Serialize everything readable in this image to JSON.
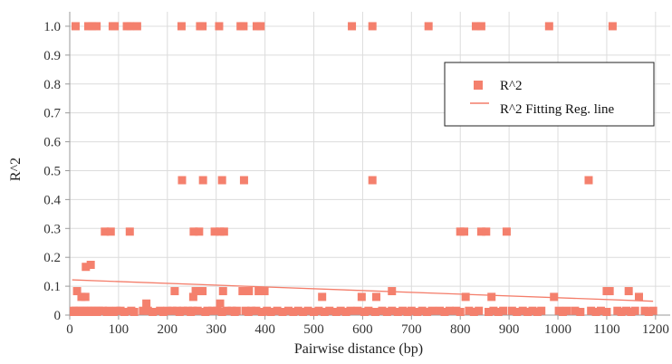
{
  "chart_data": {
    "type": "scatter",
    "xlabel": "Pairwise distance (bp)",
    "ylabel": "R^2",
    "xlim": [
      0,
      1230
    ],
    "ylim": [
      0,
      1.05
    ],
    "x_ticks": [
      0,
      100,
      200,
      300,
      400,
      500,
      600,
      700,
      800,
      900,
      1000,
      1100,
      1200
    ],
    "y_ticks": [
      0,
      0.1,
      0.2,
      0.3,
      0.4,
      0.5,
      0.6,
      0.7,
      0.8,
      0.9,
      1.0
    ],
    "y_tick_labels": [
      "0",
      "0.1",
      "0.2",
      "0.3",
      "0.4",
      "0.5",
      "0.6",
      "0.7",
      "0.8",
      "0.9",
      "1.0"
    ],
    "grid": true,
    "legend_position": "top-right",
    "colors": {
      "points": "#f4806d",
      "line": "#f47d6a",
      "grid": "#dcdcdc",
      "axis": "#9a9a9a"
    },
    "series": [
      {
        "name": "R^2",
        "kind": "scatter",
        "points": [
          [
            12,
            1.0
          ],
          [
            38,
            1.0
          ],
          [
            46,
            1.0
          ],
          [
            55,
            1.0
          ],
          [
            88,
            1.0
          ],
          [
            92,
            1.0
          ],
          [
            117,
            1.0
          ],
          [
            124,
            1.0
          ],
          [
            138,
            1.0
          ],
          [
            229,
            1.0
          ],
          [
            267,
            1.0
          ],
          [
            272,
            1.0
          ],
          [
            306,
            1.0
          ],
          [
            350,
            1.0
          ],
          [
            356,
            1.0
          ],
          [
            383,
            1.0
          ],
          [
            391,
            1.0
          ],
          [
            578,
            1.0
          ],
          [
            620,
            1.0
          ],
          [
            735,
            1.0
          ],
          [
            832,
            1.0
          ],
          [
            843,
            1.0
          ],
          [
            982,
            1.0
          ],
          [
            1112,
            1.0
          ],
          [
            230,
            0.467
          ],
          [
            273,
            0.467
          ],
          [
            312,
            0.467
          ],
          [
            357,
            0.467
          ],
          [
            620,
            0.467
          ],
          [
            1063,
            0.467
          ],
          [
            72,
            0.289
          ],
          [
            84,
            0.289
          ],
          [
            123,
            0.289
          ],
          [
            254,
            0.289
          ],
          [
            265,
            0.289
          ],
          [
            297,
            0.289
          ],
          [
            308,
            0.289
          ],
          [
            316,
            0.289
          ],
          [
            800,
            0.289
          ],
          [
            808,
            0.289
          ],
          [
            843,
            0.289
          ],
          [
            853,
            0.289
          ],
          [
            895,
            0.289
          ],
          [
            33,
            0.167
          ],
          [
            43,
            0.174
          ],
          [
            15,
            0.083
          ],
          [
            24,
            0.063
          ],
          [
            32,
            0.063
          ],
          [
            157,
            0.04
          ],
          [
            215,
            0.083
          ],
          [
            253,
            0.063
          ],
          [
            258,
            0.083
          ],
          [
            267,
            0.083
          ],
          [
            272,
            0.083
          ],
          [
            308,
            0.04
          ],
          [
            314,
            0.083
          ],
          [
            354,
            0.083
          ],
          [
            367,
            0.083
          ],
          [
            387,
            0.083
          ],
          [
            399,
            0.083
          ],
          [
            517,
            0.063
          ],
          [
            598,
            0.063
          ],
          [
            628,
            0.063
          ],
          [
            660,
            0.083
          ],
          [
            811,
            0.063
          ],
          [
            864,
            0.063
          ],
          [
            992,
            0.063
          ],
          [
            1100,
            0.083
          ],
          [
            1106,
            0.083
          ],
          [
            1145,
            0.083
          ],
          [
            1166,
            0.063
          ],
          [
            4,
            0.015
          ],
          [
            12,
            0.015
          ],
          [
            20,
            0.015
          ],
          [
            28,
            0.015
          ],
          [
            36,
            0.015
          ],
          [
            44,
            0.015
          ],
          [
            52,
            0.015
          ],
          [
            60,
            0.015
          ],
          [
            68,
            0.015
          ],
          [
            80,
            0.015
          ],
          [
            96,
            0.015
          ],
          [
            104,
            0.015
          ],
          [
            126,
            0.015
          ],
          [
            150,
            0.015
          ],
          [
            160,
            0.015
          ],
          [
            185,
            0.015
          ],
          [
            200,
            0.015
          ],
          [
            210,
            0.015
          ],
          [
            220,
            0.015
          ],
          [
            232,
            0.015
          ],
          [
            242,
            0.015
          ],
          [
            252,
            0.015
          ],
          [
            262,
            0.015
          ],
          [
            282,
            0.015
          ],
          [
            292,
            0.015
          ],
          [
            302,
            0.015
          ],
          [
            322,
            0.015
          ],
          [
            332,
            0.015
          ],
          [
            342,
            0.015
          ],
          [
            360,
            0.015
          ],
          [
            372,
            0.015
          ],
          [
            382,
            0.015
          ],
          [
            404,
            0.015
          ],
          [
            425,
            0.015
          ],
          [
            448,
            0.015
          ],
          [
            468,
            0.015
          ],
          [
            488,
            0.015
          ],
          [
            510,
            0.015
          ],
          [
            532,
            0.015
          ],
          [
            555,
            0.015
          ],
          [
            575,
            0.015
          ],
          [
            590,
            0.015
          ],
          [
            612,
            0.015
          ],
          [
            640,
            0.015
          ],
          [
            660,
            0.015
          ],
          [
            682,
            0.015
          ],
          [
            700,
            0.015
          ],
          [
            722,
            0.015
          ],
          [
            742,
            0.015
          ],
          [
            758,
            0.015
          ],
          [
            778,
            0.015
          ],
          [
            792,
            0.015
          ],
          [
            818,
            0.015
          ],
          [
            838,
            0.015
          ],
          [
            868,
            0.015
          ],
          [
            888,
            0.015
          ],
          [
            906,
            0.015
          ],
          [
            928,
            0.015
          ],
          [
            948,
            0.015
          ],
          [
            966,
            0.015
          ],
          [
            1002,
            0.015
          ],
          [
            1018,
            0.015
          ],
          [
            1035,
            0.015
          ],
          [
            1068,
            0.015
          ],
          [
            1088,
            0.015
          ],
          [
            1122,
            0.015
          ],
          [
            1140,
            0.015
          ],
          [
            1158,
            0.015
          ],
          [
            1178,
            0.015
          ],
          [
            1195,
            0.015
          ],
          [
            6,
            0.003
          ],
          [
            18,
            0.003
          ],
          [
            26,
            0.003
          ],
          [
            40,
            0.003
          ],
          [
            56,
            0.003
          ],
          [
            76,
            0.003
          ],
          [
            90,
            0.003
          ],
          [
            112,
            0.003
          ],
          [
            132,
            0.003
          ],
          [
            170,
            0.003
          ],
          [
            192,
            0.003
          ],
          [
            225,
            0.003
          ],
          [
            248,
            0.003
          ],
          [
            278,
            0.003
          ],
          [
            312,
            0.003
          ],
          [
            338,
            0.003
          ],
          [
            366,
            0.003
          ],
          [
            394,
            0.003
          ],
          [
            412,
            0.003
          ],
          [
            436,
            0.003
          ],
          [
            458,
            0.003
          ],
          [
            478,
            0.003
          ],
          [
            500,
            0.003
          ],
          [
            522,
            0.003
          ],
          [
            546,
            0.003
          ],
          [
            566,
            0.003
          ],
          [
            604,
            0.003
          ],
          [
            626,
            0.003
          ],
          [
            650,
            0.003
          ],
          [
            672,
            0.003
          ],
          [
            692,
            0.003
          ],
          [
            712,
            0.003
          ],
          [
            732,
            0.003
          ],
          [
            768,
            0.003
          ],
          [
            800,
            0.003
          ],
          [
            828,
            0.003
          ],
          [
            858,
            0.003
          ],
          [
            878,
            0.003
          ],
          [
            916,
            0.003
          ],
          [
            938,
            0.003
          ],
          [
            958,
            0.003
          ],
          [
            1010,
            0.003
          ],
          [
            1046,
            0.003
          ],
          [
            1078,
            0.003
          ],
          [
            1100,
            0.003
          ],
          [
            1130,
            0.003
          ],
          [
            1150,
            0.003
          ],
          [
            1186,
            0.003
          ]
        ]
      },
      {
        "name": "R^2 Fitting Reg. line",
        "kind": "line",
        "points": [
          [
            5,
            0.122
          ],
          [
            1195,
            0.048
          ]
        ]
      }
    ]
  }
}
